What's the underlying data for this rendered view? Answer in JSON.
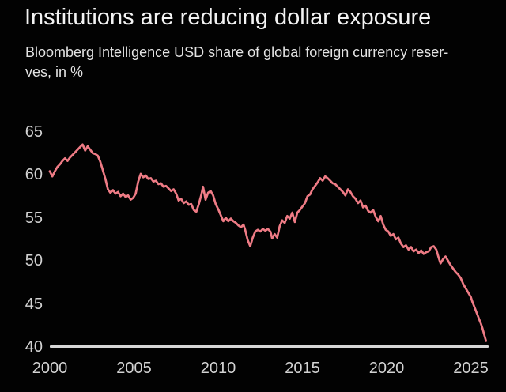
{
  "header": {
    "title": "Institutions are reducing dollar exposure",
    "subtitle_line1": "Bloomberg Intelligence USD share of global foreign currency reser-",
    "subtitle_line2": "ves, in %"
  },
  "colors": {
    "background": "#000000",
    "title_text": "#f3f3f3",
    "subtitle_text": "#e3e3e3",
    "tick_text": "#d2d2d2"
  },
  "chart_data": {
    "type": "line",
    "title": "Institutions are reducing dollar exposure",
    "subtitle": "Bloomberg Intelligence USD share of global foreign currency reserves, in %",
    "xlabel": "",
    "ylabel": "USD share of global foreign currency reserves, %",
    "x_ticks": [
      2000,
      2005,
      2010,
      2015,
      2020,
      2025
    ],
    "y_ticks": [
      40,
      45,
      50,
      55,
      60,
      65
    ],
    "xlim": [
      2000,
      2026
    ],
    "ylim": [
      40,
      65
    ],
    "grid": false,
    "legend": false,
    "axis_color": "#d6d6d6",
    "series": [
      {
        "name": "USD share of global foreign currency reserves",
        "color": "#ee7b85",
        "points": [
          [
            2000.0,
            60.4
          ],
          [
            2000.15,
            59.8
          ],
          [
            2000.3,
            60.4
          ],
          [
            2000.45,
            60.9
          ],
          [
            2000.6,
            61.2
          ],
          [
            2000.75,
            61.6
          ],
          [
            2000.9,
            61.9
          ],
          [
            2001.05,
            61.6
          ],
          [
            2001.2,
            62.0
          ],
          [
            2001.35,
            62.3
          ],
          [
            2001.5,
            62.6
          ],
          [
            2001.65,
            62.9
          ],
          [
            2001.8,
            63.2
          ],
          [
            2001.95,
            63.5
          ],
          [
            2002.1,
            62.8
          ],
          [
            2002.25,
            63.3
          ],
          [
            2002.4,
            62.9
          ],
          [
            2002.55,
            62.5
          ],
          [
            2002.7,
            62.4
          ],
          [
            2002.85,
            62.2
          ],
          [
            2003.0,
            61.5
          ],
          [
            2003.15,
            60.5
          ],
          [
            2003.3,
            59.5
          ],
          [
            2003.45,
            58.3
          ],
          [
            2003.6,
            57.9
          ],
          [
            2003.75,
            58.2
          ],
          [
            2003.9,
            57.8
          ],
          [
            2004.05,
            58.0
          ],
          [
            2004.2,
            57.5
          ],
          [
            2004.35,
            57.8
          ],
          [
            2004.5,
            57.4
          ],
          [
            2004.65,
            57.6
          ],
          [
            2004.8,
            57.1
          ],
          [
            2004.95,
            57.3
          ],
          [
            2005.1,
            57.8
          ],
          [
            2005.25,
            59.2
          ],
          [
            2005.4,
            60.1
          ],
          [
            2005.55,
            59.7
          ],
          [
            2005.7,
            59.9
          ],
          [
            2005.85,
            59.5
          ],
          [
            2006.0,
            59.6
          ],
          [
            2006.15,
            59.2
          ],
          [
            2006.3,
            59.3
          ],
          [
            2006.45,
            58.9
          ],
          [
            2006.6,
            59.0
          ],
          [
            2006.75,
            58.6
          ],
          [
            2006.9,
            58.7
          ],
          [
            2007.05,
            58.4
          ],
          [
            2007.2,
            58.1
          ],
          [
            2007.35,
            58.3
          ],
          [
            2007.5,
            57.8
          ],
          [
            2007.65,
            57.0
          ],
          [
            2007.8,
            57.2
          ],
          [
            2007.95,
            56.7
          ],
          [
            2008.1,
            56.9
          ],
          [
            2008.25,
            56.5
          ],
          [
            2008.4,
            56.6
          ],
          [
            2008.55,
            55.9
          ],
          [
            2008.7,
            55.7
          ],
          [
            2008.85,
            56.6
          ],
          [
            2009.0,
            57.7
          ],
          [
            2009.1,
            58.6
          ],
          [
            2009.25,
            57.1
          ],
          [
            2009.4,
            57.9
          ],
          [
            2009.55,
            58.1
          ],
          [
            2009.7,
            57.6
          ],
          [
            2009.85,
            56.6
          ],
          [
            2010.0,
            56.0
          ],
          [
            2010.15,
            55.3
          ],
          [
            2010.3,
            54.6
          ],
          [
            2010.45,
            55.0
          ],
          [
            2010.6,
            54.6
          ],
          [
            2010.75,
            54.9
          ],
          [
            2010.9,
            54.6
          ],
          [
            2011.05,
            54.4
          ],
          [
            2011.2,
            54.1
          ],
          [
            2011.35,
            53.9
          ],
          [
            2011.5,
            54.2
          ],
          [
            2011.6,
            53.6
          ],
          [
            2011.75,
            52.4
          ],
          [
            2011.9,
            51.7
          ],
          [
            2012.05,
            52.7
          ],
          [
            2012.2,
            53.4
          ],
          [
            2012.35,
            53.6
          ],
          [
            2012.5,
            53.4
          ],
          [
            2012.65,
            53.7
          ],
          [
            2012.8,
            53.5
          ],
          [
            2012.95,
            53.7
          ],
          [
            2013.1,
            53.4
          ],
          [
            2013.2,
            52.6
          ],
          [
            2013.35,
            53.1
          ],
          [
            2013.5,
            52.7
          ],
          [
            2013.65,
            54.0
          ],
          [
            2013.8,
            54.7
          ],
          [
            2013.95,
            54.4
          ],
          [
            2014.1,
            55.2
          ],
          [
            2014.25,
            54.9
          ],
          [
            2014.4,
            55.6
          ],
          [
            2014.55,
            54.5
          ],
          [
            2014.7,
            55.6
          ],
          [
            2014.85,
            55.9
          ],
          [
            2015.0,
            56.3
          ],
          [
            2015.15,
            56.7
          ],
          [
            2015.3,
            57.5
          ],
          [
            2015.45,
            57.7
          ],
          [
            2015.6,
            58.3
          ],
          [
            2015.75,
            58.7
          ],
          [
            2015.9,
            59.1
          ],
          [
            2016.05,
            59.6
          ],
          [
            2016.2,
            59.3
          ],
          [
            2016.35,
            59.8
          ],
          [
            2016.5,
            59.6
          ],
          [
            2016.65,
            59.3
          ],
          [
            2016.8,
            59.0
          ],
          [
            2016.95,
            58.9
          ],
          [
            2017.1,
            58.6
          ],
          [
            2017.25,
            58.3
          ],
          [
            2017.4,
            58.0
          ],
          [
            2017.55,
            57.6
          ],
          [
            2017.7,
            58.3
          ],
          [
            2017.85,
            58.0
          ],
          [
            2018.0,
            57.5
          ],
          [
            2018.15,
            57.2
          ],
          [
            2018.3,
            56.7
          ],
          [
            2018.45,
            57.0
          ],
          [
            2018.6,
            56.2
          ],
          [
            2018.75,
            56.4
          ],
          [
            2018.9,
            55.8
          ],
          [
            2019.05,
            55.6
          ],
          [
            2019.2,
            55.9
          ],
          [
            2019.35,
            55.1
          ],
          [
            2019.5,
            54.6
          ],
          [
            2019.65,
            55.2
          ],
          [
            2019.8,
            54.2
          ],
          [
            2019.95,
            53.6
          ],
          [
            2020.1,
            53.4
          ],
          [
            2020.25,
            52.9
          ],
          [
            2020.4,
            53.1
          ],
          [
            2020.55,
            52.5
          ],
          [
            2020.7,
            52.7
          ],
          [
            2020.85,
            52.0
          ],
          [
            2021.0,
            51.6
          ],
          [
            2021.15,
            51.8
          ],
          [
            2021.3,
            51.3
          ],
          [
            2021.45,
            51.6
          ],
          [
            2021.6,
            51.1
          ],
          [
            2021.75,
            51.3
          ],
          [
            2021.9,
            50.9
          ],
          [
            2022.05,
            51.2
          ],
          [
            2022.2,
            50.8
          ],
          [
            2022.35,
            51.0
          ],
          [
            2022.5,
            51.1
          ],
          [
            2022.65,
            51.6
          ],
          [
            2022.8,
            51.7
          ],
          [
            2022.95,
            51.3
          ],
          [
            2023.1,
            50.3
          ],
          [
            2023.2,
            49.7
          ],
          [
            2023.35,
            50.2
          ],
          [
            2023.5,
            50.5
          ],
          [
            2023.65,
            50.0
          ],
          [
            2023.8,
            49.5
          ],
          [
            2023.95,
            49.1
          ],
          [
            2024.1,
            48.7
          ],
          [
            2024.25,
            48.4
          ],
          [
            2024.4,
            48.0
          ],
          [
            2024.55,
            47.3
          ],
          [
            2024.7,
            46.8
          ],
          [
            2024.85,
            46.3
          ],
          [
            2025.0,
            45.8
          ],
          [
            2025.1,
            45.2
          ],
          [
            2025.2,
            44.7
          ],
          [
            2025.3,
            44.2
          ],
          [
            2025.4,
            43.7
          ],
          [
            2025.5,
            43.2
          ],
          [
            2025.6,
            42.7
          ],
          [
            2025.7,
            42.1
          ],
          [
            2025.8,
            41.4
          ],
          [
            2025.9,
            40.7
          ]
        ]
      }
    ]
  }
}
